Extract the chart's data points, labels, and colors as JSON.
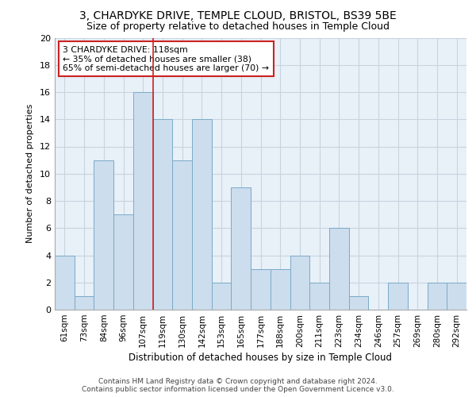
{
  "title_line1": "3, CHARDYKE DRIVE, TEMPLE CLOUD, BRISTOL, BS39 5BE",
  "title_line2": "Size of property relative to detached houses in Temple Cloud",
  "xlabel": "Distribution of detached houses by size in Temple Cloud",
  "ylabel": "Number of detached properties",
  "footer_line1": "Contains HM Land Registry data © Crown copyright and database right 2024.",
  "footer_line2": "Contains public sector information licensed under the Open Government Licence v3.0.",
  "categories": [
    "61sqm",
    "73sqm",
    "84sqm",
    "96sqm",
    "107sqm",
    "119sqm",
    "130sqm",
    "142sqm",
    "153sqm",
    "165sqm",
    "177sqm",
    "188sqm",
    "200sqm",
    "211sqm",
    "223sqm",
    "234sqm",
    "246sqm",
    "257sqm",
    "269sqm",
    "280sqm",
    "292sqm"
  ],
  "values": [
    4,
    1,
    11,
    7,
    16,
    14,
    11,
    14,
    2,
    9,
    3,
    3,
    4,
    2,
    6,
    1,
    0,
    2,
    0,
    2,
    2
  ],
  "bar_color": "#ccdded",
  "bar_edge_color": "#7aaac8",
  "vline_x": 5,
  "vline_color": "#cc2222",
  "annotation_text": "3 CHARDYKE DRIVE: 118sqm\n← 35% of detached houses are smaller (38)\n65% of semi-detached houses are larger (70) →",
  "annotation_box_color": "#ffffff",
  "annotation_box_edge": "#cc2222",
  "ylim": [
    0,
    20
  ],
  "yticks": [
    0,
    2,
    4,
    6,
    8,
    10,
    12,
    14,
    16,
    18,
    20
  ],
  "grid_color": "#c8d4e0",
  "bg_color": "#e8f0f8",
  "title1_fontsize": 10,
  "title2_fontsize": 9
}
